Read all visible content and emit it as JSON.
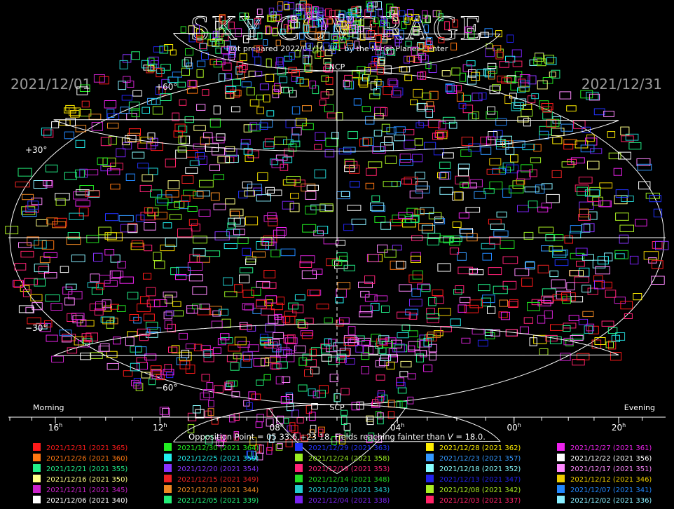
{
  "header": {
    "title": "SKY COVERAGE",
    "subtitle": "Plot prepared 2022/01/10.381 by the Minor Planet Center",
    "date_left": "2021/12/01",
    "date_right": "2021/12/31"
  },
  "chart_data": {
    "type": "scatter",
    "projection": "Hammer-Aitoff",
    "title": "SKY COVERAGE",
    "pole_labels": {
      "north": "NCP",
      "south": "SCP"
    },
    "dec_labels": [
      "+60°",
      "+30°",
      "−30°",
      "−60°"
    ],
    "ra_ticks": [
      {
        "value": 16,
        "label": "16"
      },
      {
        "value": 12,
        "label": "12"
      },
      {
        "value": 8,
        "label": "08"
      },
      {
        "value": 4,
        "label": "04"
      },
      {
        "value": 0,
        "label": "00"
      },
      {
        "value": 20,
        "label": "20"
      }
    ],
    "ra_unit": "h",
    "corner_left": "Morning",
    "corner_right": "Evening",
    "footer_text": "Opposition Point = 05 33.6,+23 18.  Fields reaching fainter than",
    "footer_v": "V",
    "footer_mag": "= 18.0."
  },
  "legend": [
    {
      "date": "2021/12/31",
      "code": "(2021 365)",
      "color": "#ff1a1a"
    },
    {
      "date": "2021/12/30",
      "code": "(2021 364)",
      "color": "#22ee22"
    },
    {
      "date": "2021/12/29",
      "code": "(2021 363)",
      "color": "#2233ff"
    },
    {
      "date": "2021/12/28",
      "code": "(2021 362)",
      "color": "#ffee00"
    },
    {
      "date": "2021/12/27",
      "code": "(2021 361)",
      "color": "#ee22ee"
    },
    {
      "date": "2021/12/26",
      "code": "(2021 360)",
      "color": "#ff7711"
    },
    {
      "date": "2021/12/25",
      "code": "(2021 359)",
      "color": "#22eeee"
    },
    {
      "date": "2021/12/24",
      "code": "(2021 358)",
      "color": "#99ee22"
    },
    {
      "date": "2021/12/23",
      "code": "(2021 357)",
      "color": "#3399ff"
    },
    {
      "date": "2021/12/22",
      "code": "(2021 356)",
      "color": "#ffffff"
    },
    {
      "date": "2021/12/21",
      "code": "(2021 355)",
      "color": "#22ee88"
    },
    {
      "date": "2021/12/20",
      "code": "(2021 354)",
      "color": "#8833ff"
    },
    {
      "date": "2021/12/19",
      "code": "(2021 353)",
      "color": "#ff2277"
    },
    {
      "date": "2021/12/18",
      "code": "(2021 352)",
      "color": "#88ffff"
    },
    {
      "date": "2021/12/17",
      "code": "(2021 351)",
      "color": "#ff88ff"
    },
    {
      "date": "2021/12/16",
      "code": "(2021 350)",
      "color": "#ffff88"
    },
    {
      "date": "2021/12/15",
      "code": "(2021 349)",
      "color": "#ee2222"
    },
    {
      "date": "2021/12/14",
      "code": "(2021 348)",
      "color": "#22dd22"
    },
    {
      "date": "2021/12/13",
      "code": "(2021 347)",
      "color": "#2222ee"
    },
    {
      "date": "2021/12/12",
      "code": "(2021 346)",
      "color": "#eecc00"
    },
    {
      "date": "2021/12/11",
      "code": "(2021 345)",
      "color": "#cc22cc"
    },
    {
      "date": "2021/12/10",
      "code": "(2021 344)",
      "color": "#ee8822"
    },
    {
      "date": "2021/12/09",
      "code": "(2021 343)",
      "color": "#22cccc"
    },
    {
      "date": "2021/12/08",
      "code": "(2021 342)",
      "color": "#aaee22"
    },
    {
      "date": "2021/12/07",
      "code": "(2021 341)",
      "color": "#2288ff"
    },
    {
      "date": "2021/12/06",
      "code": "(2021 340)",
      "color": "#ffffff"
    },
    {
      "date": "2021/12/05",
      "code": "(2021 339)",
      "color": "#22ee77"
    },
    {
      "date": "2021/12/04",
      "code": "(2021 338)",
      "color": "#7722ee"
    },
    {
      "date": "2021/12/03",
      "code": "(2021 337)",
      "color": "#ff2266"
    },
    {
      "date": "2021/12/02",
      "code": "(2021 336)",
      "color": "#88eeff"
    }
  ]
}
